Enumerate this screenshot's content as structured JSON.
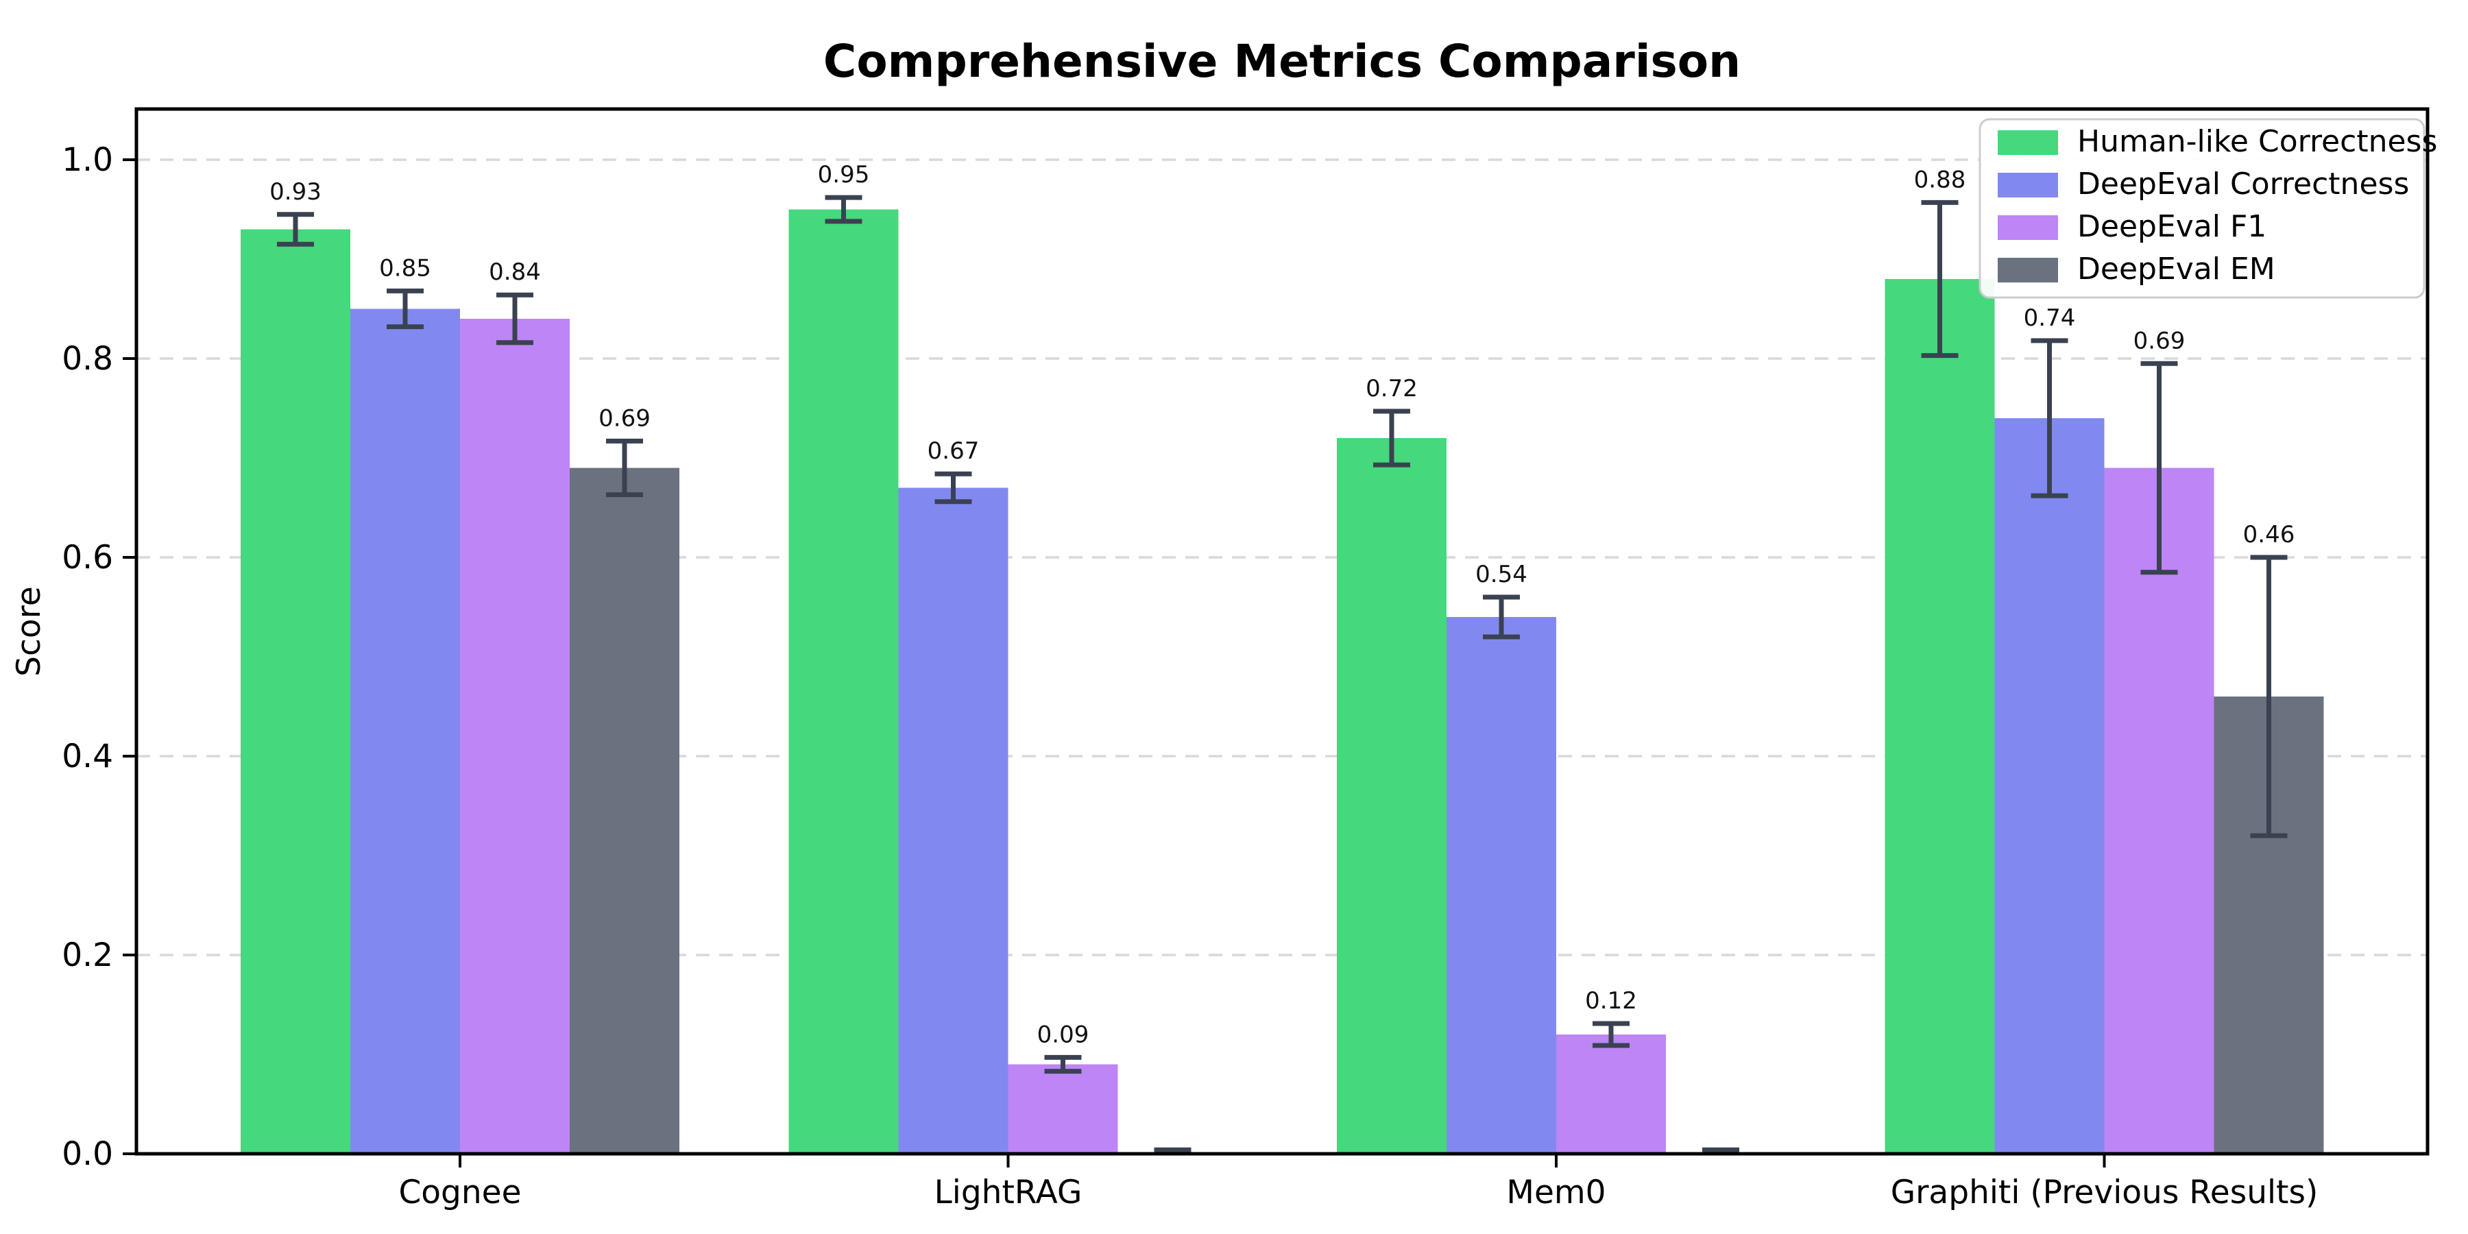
{
  "figure": {
    "background": "#ffffff",
    "text_color": "#000000"
  },
  "chart_data": {
    "type": "bar",
    "title": "Comprehensive Metrics Comparison",
    "xlabel": "",
    "ylabel": "Score",
    "categories": [
      "Cognee",
      "LightRAG",
      "Mem0",
      "Graphiti (Previous Results)"
    ],
    "ylim": [
      0,
      1.05
    ],
    "yticks": [
      0.0,
      0.2,
      0.4,
      0.6,
      0.8,
      1.0
    ],
    "ytick_labels": [
      "0.0",
      "0.2",
      "0.4",
      "0.6",
      "0.8",
      "1.0"
    ],
    "grid": "horizontal-dashed",
    "grid_color": "#d9d9d9",
    "legend_position": "upper right",
    "legend_border_color": "#cccccc",
    "error_bar_color": "#3a4251",
    "series": [
      {
        "name": "Human-like Correctness",
        "color": "#45d87d",
        "values": [
          0.93,
          0.95,
          0.72,
          0.88
        ],
        "errors": [
          0.015,
          0.012,
          0.027,
          0.077
        ],
        "labels": [
          "0.93",
          "0.95",
          "0.72",
          "0.88"
        ]
      },
      {
        "name": "DeepEval Correctness",
        "color": "#8189f0",
        "values": [
          0.85,
          0.67,
          0.54,
          0.74
        ],
        "errors": [
          0.018,
          0.014,
          0.02,
          0.078
        ],
        "labels": [
          "0.85",
          "0.67",
          "0.54",
          "0.74"
        ]
      },
      {
        "name": "DeepEval F1",
        "color": "#bd85f5",
        "values": [
          0.84,
          0.09,
          0.12,
          0.69
        ],
        "errors": [
          0.024,
          0.007,
          0.011,
          0.105
        ],
        "labels": [
          "0.84",
          "0.09",
          "0.12",
          "0.69"
        ]
      },
      {
        "name": "DeepEval EM",
        "color": "#6a7280",
        "values": [
          0.69,
          0.0,
          0.0,
          0.46
        ],
        "errors": [
          0.027,
          0.004,
          0.004,
          0.14
        ],
        "labels": [
          "0.69",
          "",
          "",
          "0.46"
        ]
      }
    ]
  }
}
